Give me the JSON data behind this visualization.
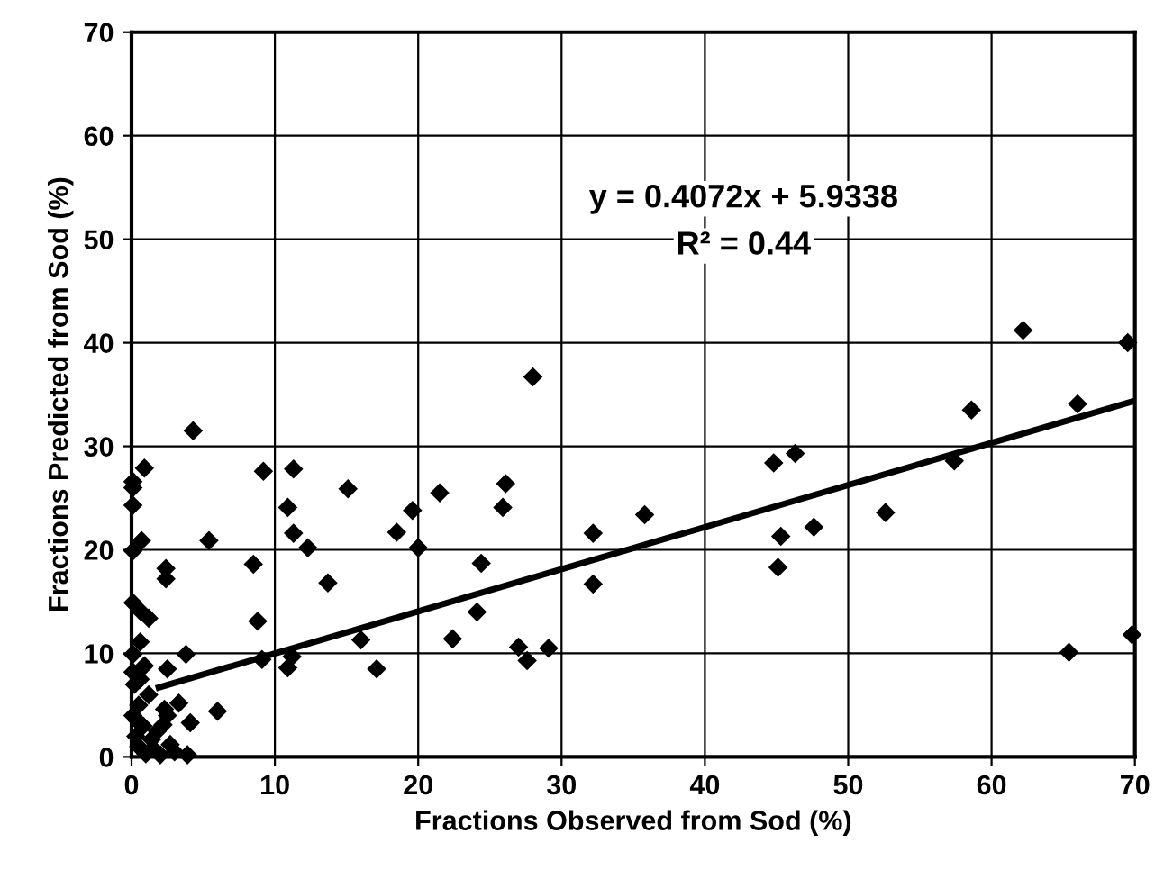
{
  "chart_data": {
    "type": "scatter",
    "xlabel": "Fractions Observed from Sod (%)",
    "ylabel": "Fractions Predicted from Sod (%)",
    "xlim": [
      0,
      70
    ],
    "ylim": [
      0,
      70
    ],
    "xticks": [
      0,
      10,
      20,
      30,
      40,
      50,
      60,
      70
    ],
    "yticks": [
      0,
      10,
      20,
      30,
      40,
      50,
      60,
      70
    ],
    "grid": true,
    "marker": "diamond",
    "annotations": [
      "y = 0.4072x + 5.9338",
      "R² = 0.44"
    ],
    "series": [
      {
        "color": "#000000",
        "x": [
          4.3,
          0.9,
          9.2,
          11.3,
          0.1,
          0.1,
          0.1,
          15.1,
          10.9,
          21.5,
          19.6,
          0.7,
          0.1,
          5.4,
          11.3,
          12.3,
          18.5,
          20.0,
          2.4,
          2.4,
          8.5,
          13.7,
          0.1,
          0.6,
          1.2,
          8.8,
          16.0,
          22.4,
          17.1,
          9.1,
          11.2,
          10.9,
          3.8,
          2.5,
          0.1,
          0.6,
          3.3,
          6.0,
          2.5,
          4.1,
          2.3,
          3.9,
          0.5,
          1.0,
          1.5,
          2.0,
          0.3,
          0.8,
          0.1,
          0.5,
          1.2,
          0.2,
          0.6,
          1.8,
          2.7,
          0.1,
          0.9,
          1.4,
          0.4,
          2.2,
          3.0,
          28.0,
          24.4,
          24.1,
          26.1,
          25.9,
          27.0,
          27.6,
          29.1,
          32.2,
          32.2,
          35.8,
          44.8,
          46.3,
          45.3,
          45.1,
          47.6,
          52.6,
          57.4,
          58.6,
          62.2,
          66.0,
          69.5,
          65.4,
          69.8
        ],
        "values": [
          31.5,
          27.9,
          27.6,
          27.8,
          26.6,
          26.0,
          24.3,
          25.9,
          24.1,
          25.5,
          23.8,
          20.9,
          19.9,
          20.9,
          21.6,
          20.2,
          21.7,
          20.2,
          18.2,
          17.2,
          18.6,
          16.8,
          14.9,
          14.1,
          13.4,
          13.1,
          11.3,
          11.4,
          8.5,
          9.4,
          9.7,
          8.6,
          9.9,
          8.5,
          9.9,
          11.1,
          5.2,
          4.4,
          4.0,
          3.3,
          4.6,
          0.2,
          1.0,
          0.3,
          0.8,
          0.2,
          2.0,
          3.0,
          4.0,
          5.0,
          6.0,
          7.0,
          7.5,
          2.5,
          1.2,
          8.2,
          8.8,
          1.7,
          3.5,
          3.1,
          0.5,
          36.7,
          18.7,
          14.0,
          26.4,
          24.1,
          10.6,
          9.3,
          10.5,
          21.6,
          16.7,
          23.4,
          28.4,
          29.3,
          21.3,
          18.3,
          22.2,
          23.6,
          28.6,
          33.5,
          41.2,
          34.1,
          40.0,
          10.1,
          11.8
        ]
      },
      {
        "type": "line",
        "color": "#000000",
        "marker": "none",
        "x": [
          1.9,
          70
        ],
        "values": [
          6.7,
          34.4
        ]
      }
    ]
  }
}
